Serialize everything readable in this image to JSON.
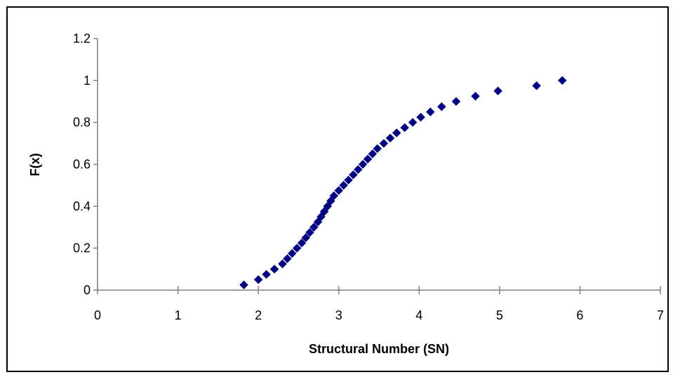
{
  "chart_data": {
    "type": "scatter",
    "title": "",
    "xlabel": "Structural Number (SN)",
    "ylabel": "F(x)",
    "xlim": [
      0,
      7
    ],
    "ylim": [
      0,
      1.2
    ],
    "xticks": [
      0,
      1,
      2,
      3,
      4,
      5,
      6,
      7
    ],
    "xtick_labels": [
      "0",
      "1",
      "2",
      "3",
      "4",
      "5",
      "6",
      "7"
    ],
    "yticks": [
      0,
      0.2,
      0.4,
      0.6,
      0.8,
      1.0,
      1.2
    ],
    "ytick_labels": [
      "0",
      "0.2",
      "0.4",
      "0.6",
      "0.8",
      "1",
      "1.2"
    ],
    "grid": false,
    "legend": "none",
    "marker": "diamond",
    "marker_color": "#000080",
    "plot_background": "#ffffff",
    "series": [
      {
        "points": [
          [
            1.82,
            0.025
          ],
          [
            2.0,
            0.05
          ],
          [
            2.1,
            0.075
          ],
          [
            2.2,
            0.1
          ],
          [
            2.3,
            0.125
          ],
          [
            2.36,
            0.15
          ],
          [
            2.42,
            0.175
          ],
          [
            2.48,
            0.2
          ],
          [
            2.54,
            0.225
          ],
          [
            2.59,
            0.25
          ],
          [
            2.64,
            0.275
          ],
          [
            2.69,
            0.3
          ],
          [
            2.74,
            0.325
          ],
          [
            2.78,
            0.35
          ],
          [
            2.82,
            0.375
          ],
          [
            2.86,
            0.4
          ],
          [
            2.9,
            0.425
          ],
          [
            2.94,
            0.45
          ],
          [
            3.0,
            0.475
          ],
          [
            3.06,
            0.5
          ],
          [
            3.12,
            0.525
          ],
          [
            3.18,
            0.55
          ],
          [
            3.24,
            0.575
          ],
          [
            3.3,
            0.6
          ],
          [
            3.36,
            0.625
          ],
          [
            3.42,
            0.65
          ],
          [
            3.48,
            0.675
          ],
          [
            3.56,
            0.7
          ],
          [
            3.64,
            0.725
          ],
          [
            3.72,
            0.75
          ],
          [
            3.82,
            0.775
          ],
          [
            3.92,
            0.8
          ],
          [
            4.02,
            0.825
          ],
          [
            4.14,
            0.85
          ],
          [
            4.28,
            0.875
          ],
          [
            4.46,
            0.9
          ],
          [
            4.7,
            0.925
          ],
          [
            4.98,
            0.95
          ],
          [
            5.46,
            0.975
          ],
          [
            5.78,
            1.0
          ]
        ]
      }
    ]
  }
}
